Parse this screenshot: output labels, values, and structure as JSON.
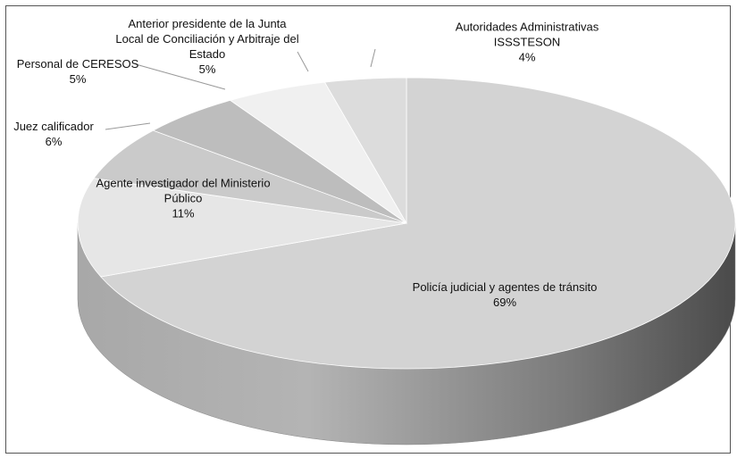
{
  "chart_data": {
    "type": "pie",
    "categories": [
      "Policía judicial y agentes de tránsito",
      "Agente investigador del Ministerio Público",
      "Juez calificador",
      "Personal de CERESOS",
      "Anterior presidente de la Junta Local de Conciliación y Arbitraje del Estado",
      "Autoridades Administrativas ISSSTESON"
    ],
    "values": [
      69,
      11,
      6,
      5,
      5,
      4
    ],
    "value_labels": [
      "69%",
      "11%",
      "6%",
      "5%",
      "5%",
      "4%"
    ],
    "colors": [
      "#d3d3d3",
      "#e6e6e6",
      "#cacaca",
      "#bdbdbd",
      "#f0f0f0",
      "#dcdcdc"
    ]
  }
}
